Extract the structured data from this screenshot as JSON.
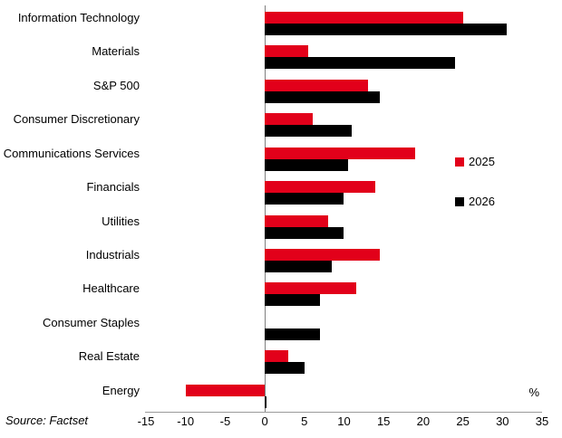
{
  "chart_data": {
    "type": "bar",
    "orientation": "horizontal",
    "title": "",
    "xlabel": "",
    "ylabel": "",
    "unit_label": "%",
    "categories": [
      "Information Technology",
      "Materials",
      "S&P 500",
      "Consumer Discretionary",
      "Communications Services",
      "Financials",
      "Utilities",
      "Industrials",
      "Healthcare",
      "Consumer Staples",
      "Real Estate",
      "Energy"
    ],
    "series": [
      {
        "name": "2025",
        "color": "#e2001a",
        "values": [
          25,
          5.5,
          13,
          6,
          19,
          14,
          8,
          14.5,
          11.5,
          0,
          3,
          -10
        ]
      },
      {
        "name": "2026",
        "color": "#000000",
        "values": [
          30.5,
          24,
          14.5,
          11,
          10.5,
          10,
          10,
          8.5,
          7,
          7,
          5,
          0.2
        ]
      }
    ],
    "xlim": [
      -15,
      35
    ],
    "x_tick_labels": [
      "-15",
      "-10",
      "-5",
      "0",
      "5",
      "10",
      "15",
      "20",
      "25",
      "30",
      "35"
    ],
    "x_ticks": [
      -15,
      -10,
      -5,
      0,
      5,
      10,
      15,
      20,
      25,
      30,
      35
    ],
    "grid": false,
    "legend_position": "right"
  },
  "source": {
    "text": "Source: Factset"
  }
}
